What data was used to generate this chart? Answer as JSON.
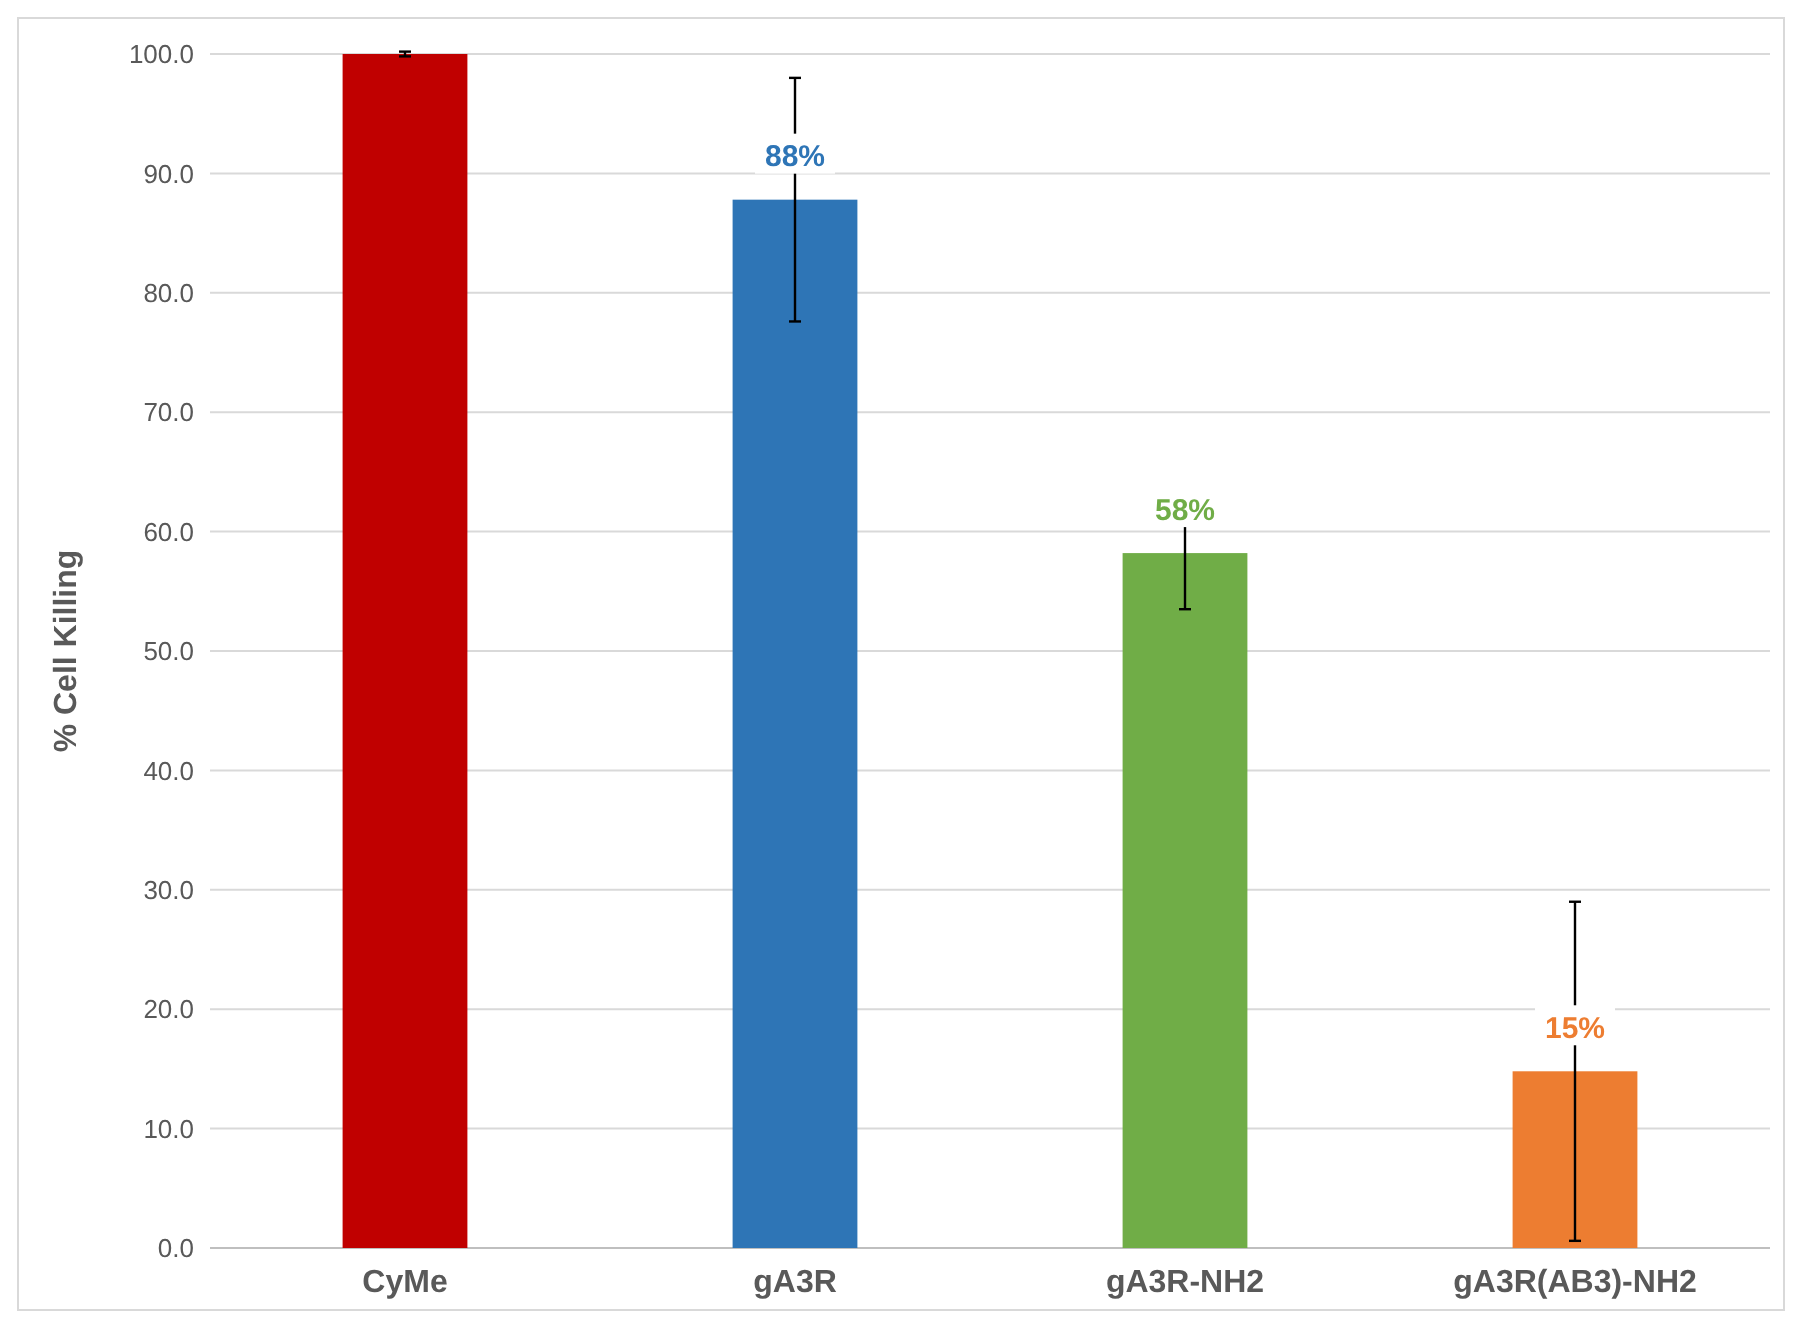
{
  "chart_data": {
    "type": "bar",
    "ylabel": "% Cell Killing",
    "categories": [
      "CyMe",
      "gA3R",
      "gA3R-NH2",
      "gA3R(AB3)-NH2"
    ],
    "values": [
      100,
      87.8,
      58.2,
      14.8
    ],
    "colors": [
      "#c00000",
      "#2e75b6",
      "#70ad47",
      "#ed7d31"
    ],
    "errors": [
      0.2,
      10.2,
      4.7,
      14.2
    ],
    "value_labels": [
      null,
      "88%",
      "58%",
      "15%"
    ],
    "ylim": [
      0,
      100
    ],
    "yticks": [
      {
        "value": 0,
        "label": "0.0"
      },
      {
        "value": 10,
        "label": "10.0"
      },
      {
        "value": 20,
        "label": "20.0"
      },
      {
        "value": 30,
        "label": "30.0"
      },
      {
        "value": 40,
        "label": "40.0"
      },
      {
        "value": 50,
        "label": "50.0"
      },
      {
        "value": 60,
        "label": "60.0"
      },
      {
        "value": 70,
        "label": "70.0"
      },
      {
        "value": 80,
        "label": "80.0"
      },
      {
        "value": 90,
        "label": "90.0"
      },
      {
        "value": 100,
        "label": "100.0"
      }
    ],
    "grid": "y"
  }
}
